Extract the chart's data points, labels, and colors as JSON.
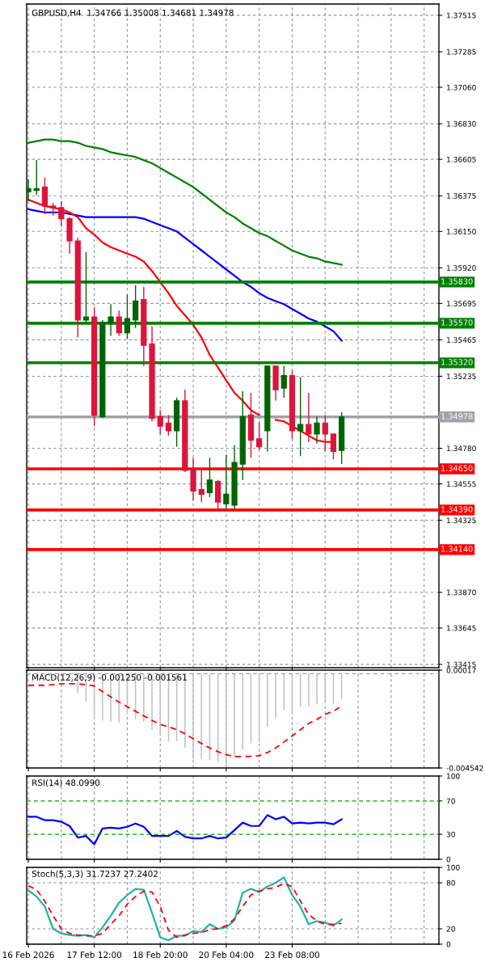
{
  "chart_data": [
    {
      "type": "candlestick",
      "title": "GBPUSD,H4  1.34766 1.35008 1.34681 1.34978",
      "categories": [
        null,
        null,
        null,
        null,
        null,
        null,
        null,
        null,
        null,
        null,
        null,
        null,
        null,
        null,
        null,
        null,
        null,
        null,
        null,
        null,
        null,
        null,
        null,
        null,
        null,
        null,
        null,
        null,
        null,
        null,
        null,
        null,
        null,
        null,
        null,
        null,
        null,
        null,
        null
      ],
      "ohlc": [
        [
          1.364,
          1.3648,
          1.3634,
          1.3642
        ],
        [
          1.3641,
          1.366,
          1.3638,
          1.3642
        ],
        [
          1.3643,
          1.3649,
          1.3626,
          1.3631
        ],
        [
          1.3631,
          1.3633,
          1.3625,
          1.363
        ],
        [
          1.363,
          1.3634,
          1.3618,
          1.3623
        ],
        [
          1.3623,
          1.3624,
          1.3601,
          1.3609
        ],
        [
          1.3609,
          1.3611,
          1.3548,
          1.3559
        ],
        [
          1.3559,
          1.3602,
          1.3558,
          1.3561
        ],
        [
          1.3561,
          1.3567,
          1.3492,
          1.3499
        ],
        [
          1.3498,
          1.3559,
          1.3497,
          1.3557
        ],
        [
          1.3557,
          1.3569,
          1.3549,
          1.3561
        ],
        [
          1.3561,
          1.3565,
          1.3549,
          1.3551
        ],
        [
          1.3551,
          1.3575,
          1.3547,
          1.356
        ],
        [
          1.3559,
          1.3581,
          1.3554,
          1.3571
        ],
        [
          1.3572,
          1.358,
          1.353,
          1.3543
        ],
        [
          1.3544,
          1.3555,
          1.3495,
          1.3497
        ],
        [
          1.3498,
          1.3502,
          1.3487,
          1.3492
        ],
        [
          1.3494,
          1.3499,
          1.3486,
          1.3489
        ],
        [
          1.3489,
          1.351,
          1.3479,
          1.3508
        ],
        [
          1.3508,
          1.3515,
          1.3463,
          1.3464
        ],
        [
          1.3465,
          1.3472,
          1.3445,
          1.3451
        ],
        [
          1.3452,
          1.3464,
          1.3444,
          1.3449
        ],
        [
          1.345,
          1.3472,
          1.3447,
          1.3458
        ],
        [
          1.3457,
          1.3458,
          1.344,
          1.3444
        ],
        [
          1.3443,
          1.3474,
          1.344,
          1.3449
        ],
        [
          1.3442,
          1.348,
          1.344,
          1.3469
        ],
        [
          1.3468,
          1.3514,
          1.3458,
          1.3498
        ],
        [
          1.3499,
          1.3513,
          1.3472,
          1.3483
        ],
        [
          1.3484,
          1.3495,
          1.3477,
          1.3479
        ],
        [
          1.3489,
          1.353,
          1.3476,
          1.353
        ],
        [
          1.353,
          1.353,
          1.3508,
          1.3515
        ],
        [
          1.3516,
          1.353,
          1.351,
          1.3524
        ],
        [
          1.3524,
          1.3527,
          1.3484,
          1.3489
        ],
        [
          1.3489,
          1.3523,
          1.3473,
          1.3493
        ],
        [
          1.3493,
          1.3513,
          1.3482,
          1.3487
        ],
        [
          1.3487,
          1.3498,
          1.3481,
          1.3494
        ],
        [
          1.3494,
          1.3499,
          1.3476,
          1.3487
        ],
        [
          1.3487,
          1.3487,
          1.3471,
          1.3476
        ],
        [
          1.34766,
          1.35008,
          1.34681,
          1.34978
        ]
      ],
      "colors": [
        "#006400",
        "#006400",
        "#dc143c",
        "#dc143c",
        "#dc143c",
        "#dc143c",
        "#dc143c",
        "#006400",
        "#dc143c",
        "#006400",
        "#006400",
        "#dc143c",
        "#006400",
        "#006400",
        "#dc143c",
        "#dc143c",
        "#dc143c",
        "#dc143c",
        "#006400",
        "#dc143c",
        "#dc143c",
        "#dc143c",
        "#006400",
        "#dc143c",
        "#006400",
        "#006400",
        "#006400",
        "#dc143c",
        "#dc143c",
        "#006400",
        "#dc143c",
        "#006400",
        "#dc143c",
        "#006400",
        "#dc143c",
        "#006400",
        "#dc143c",
        "#dc143c",
        "#006400"
      ],
      "series": [
        {
          "type": "line",
          "color": "#008000",
          "values": [
            1.3671,
            1.3672,
            1.3673,
            1.3673,
            1.3672,
            1.3672,
            1.3671,
            1.3669,
            1.3668,
            1.3667,
            1.3665,
            1.3664,
            1.3663,
            1.3662,
            1.366,
            1.3658,
            1.3655,
            1.3652,
            1.3649,
            1.3646,
            1.3643,
            1.3639,
            1.3635,
            1.3631,
            1.3627,
            1.3624,
            1.362,
            1.3617,
            1.3614,
            1.3612,
            1.3609,
            1.3606,
            1.3603,
            1.3601,
            1.3599,
            1.3598,
            1.3596,
            1.3595,
            1.3594
          ]
        },
        {
          "type": "line",
          "color": "#0000ff",
          "values": [
            1.3629,
            1.3628,
            1.3627,
            1.3627,
            1.3627,
            1.3626,
            1.3625,
            1.3624,
            1.3624,
            1.3624,
            1.3624,
            1.3624,
            1.3624,
            1.3624,
            1.3623,
            1.3621,
            1.3619,
            1.3617,
            1.3615,
            1.3611,
            1.3607,
            1.3603,
            1.3599,
            1.3595,
            1.3591,
            1.3587,
            1.3583,
            1.358,
            1.3576,
            1.3573,
            1.3571,
            1.3569,
            1.3566,
            1.3563,
            1.356,
            1.3558,
            1.3555,
            1.3552,
            1.3546
          ]
        },
        {
          "type": "line",
          "color": "#ff0000",
          "values": [
            1.3635,
            1.3633,
            1.3631,
            1.363,
            1.3629,
            1.3627,
            1.3624,
            1.3617,
            1.3613,
            1.3608,
            1.3605,
            1.3603,
            1.3601,
            1.3599,
            1.3596,
            1.359,
            1.3583,
            1.3576,
            1.3568,
            1.3562,
            1.3556,
            1.3548,
            1.3537,
            1.3529,
            1.3521,
            1.3513,
            1.3508,
            1.3502,
            1.3499,
            null,
            1.3496,
            1.3495,
            1.3492,
            1.3489,
            1.3486,
            1.3483,
            1.3482,
            1.3482,
            null
          ]
        }
      ],
      "ylim": [
        1.33394,
        1.37586
      ],
      "yticks": [
        1.37515,
        1.37285,
        {
          "value": 1.3706,
          "label": "1.37060"
        },
        {
          "value": 1.3683,
          "label": "1.36830"
        },
        1.36605,
        1.36375,
        {
          "value": 1.3615,
          "label": "1.36150"
        },
        {
          "value": 1.3592,
          "label": "1.35920"
        },
        1.35695,
        1.35465,
        1.35235,
        {
          "value": 1.3478,
          "label": "1.34780"
        },
        1.34555,
        1.34325,
        {
          "value": 1.3387,
          "label": "1.33870"
        },
        1.33645,
        1.33415
      ],
      "ref_lines": [
        {
          "axis": "y",
          "value": 1.3583,
          "label": "1.35830",
          "color": "#008000"
        },
        {
          "axis": "y",
          "value": 1.3557,
          "label": "1.35570",
          "color": "#008000"
        },
        {
          "axis": "y",
          "value": 1.3532,
          "label": "1.35320",
          "color": "#008000"
        },
        {
          "axis": "y",
          "value": 1.34978,
          "label": "1.34978",
          "color": "#a0a4a8"
        },
        {
          "axis": "y",
          "value": 1.3465,
          "label": "1.34650",
          "color": "#ff0000"
        },
        {
          "axis": "y",
          "value": 1.3439,
          "label": "1.34390",
          "color": "#ff0000"
        },
        {
          "axis": "y",
          "value": 1.3414,
          "label": "1.34140",
          "color": "#ff0000"
        }
      ],
      "grid": true,
      "tick_labels": "y"
    },
    {
      "type": "bar",
      "title": "MACD(12,26,9) -0.001250 -0.001561",
      "categories": [
        null,
        null,
        null,
        null,
        null,
        null,
        null,
        null,
        null,
        null,
        null,
        null,
        null,
        null,
        null,
        null,
        null,
        null,
        null,
        null,
        null,
        null,
        null,
        null,
        null,
        null,
        null,
        null,
        null,
        null,
        null,
        null,
        null,
        null,
        null,
        null,
        null,
        null,
        null
      ],
      "series": [
        {
          "type": "bar",
          "color": "#c0c0c0",
          "values": [
            null,
            null,
            null,
            null,
            null,
            null,
            -0.00093,
            -0.00134,
            -0.00218,
            -0.00226,
            -0.0023,
            -0.00236,
            -0.00196,
            -0.00218,
            -0.0023,
            -0.0027,
            -0.00292,
            -0.00326,
            -0.00326,
            -0.00358,
            -0.0041,
            -0.0041,
            -0.00417,
            -0.00427,
            -0.00454,
            -0.00405,
            -0.00365,
            -0.00336,
            -0.00329,
            -0.00255,
            -0.00211,
            -0.00177,
            -0.00196,
            -0.00159,
            -0.00156,
            -0.00148,
            -0.00142,
            -0.00145,
            -0.00125
          ]
        },
        {
          "type": "line",
          "color": "#ff0000",
          "line_style": "dashed",
          "values": [
            -0.00056,
            -0.00056,
            -0.00056,
            -0.00053,
            -0.00049,
            -0.00049,
            -0.00049,
            -0.00053,
            -0.00059,
            -0.00086,
            -0.00112,
            -0.00137,
            -0.00159,
            -0.00181,
            -0.00203,
            -0.00225,
            -0.00245,
            -0.00256,
            -0.0027,
            -0.00289,
            -0.00314,
            -0.00336,
            -0.00358,
            -0.00376,
            -0.0039,
            -0.00399,
            -0.00399,
            -0.00398,
            -0.00395,
            -0.0038,
            -0.00358,
            -0.00329,
            -0.003,
            -0.0027,
            -0.0024,
            -0.0022,
            -0.00196,
            -0.00181,
            -0.00156
          ]
        }
      ],
      "ylim": [
        -0.004542,
        0.00017
      ],
      "yticks": [
        0.00017,
        -0.004542
      ],
      "ref_lines": [
        {
          "axis": "y",
          "value": 0,
          "color": "#a0a4a8",
          "line_style": "dashed"
        }
      ],
      "grid": "x",
      "tick_labels": "y"
    },
    {
      "type": "line",
      "title": "RSI(14) 48.0990",
      "categories": [
        null,
        null,
        null,
        null,
        null,
        null,
        null,
        null,
        null,
        null,
        null,
        null,
        null,
        null,
        null,
        null,
        null,
        null,
        null,
        null,
        null,
        null,
        null,
        null,
        null,
        null,
        null,
        null,
        null,
        null,
        null,
        null,
        null,
        null,
        null,
        null,
        null,
        null,
        null
      ],
      "series": [
        {
          "color": "#0000ff",
          "values": [
            51,
            51,
            47,
            47,
            45,
            40,
            26,
            28,
            18,
            37,
            38,
            37,
            39,
            43,
            39,
            28,
            28,
            28,
            34,
            27,
            25,
            25,
            28,
            25,
            26,
            35,
            44,
            40,
            40,
            53,
            48,
            51,
            43,
            44,
            43,
            44,
            44,
            42,
            48
          ]
        }
      ],
      "ylim": [
        0,
        100
      ],
      "yticks": [
        100,
        70,
        30,
        0
      ],
      "ref_lines": [
        {
          "axis": "y",
          "value": 70,
          "color": "#00a000",
          "line_style": "dashed"
        },
        {
          "axis": "y",
          "value": 30,
          "color": "#00a000",
          "line_style": "dashed"
        }
      ],
      "grid": "x",
      "tick_labels": "y"
    },
    {
      "type": "line",
      "title": "Stoch(5,3,3) 31.7237 27.2402",
      "categories": [
        "16 Feb 2026",
        null,
        null,
        null,
        null,
        null,
        null,
        null,
        "17 Feb 12:00",
        null,
        null,
        null,
        null,
        null,
        null,
        null,
        "18 Feb 20:00",
        null,
        null,
        null,
        null,
        null,
        null,
        null,
        "20 Feb 04:00",
        null,
        null,
        null,
        null,
        null,
        null,
        null,
        "23 Feb 08:00",
        null,
        null,
        null,
        null,
        null,
        null
      ],
      "series": [
        {
          "color": "#20b2aa",
          "values": [
            70,
            62,
            49,
            20,
            14,
            12,
            11,
            12,
            9,
            22,
            37,
            54,
            64,
            72,
            71,
            41,
            9,
            5,
            11,
            11,
            17,
            16,
            26,
            20,
            22,
            31,
            67,
            72,
            68,
            75,
            80,
            87,
            64,
            49,
            26,
            30,
            28,
            24,
            32
          ]
        },
        {
          "color": "#ff0000",
          "line_style": "dashed",
          "values": [
            76,
            71,
            56,
            37,
            20,
            14,
            12,
            11,
            11,
            14,
            26,
            37,
            52,
            62,
            69,
            68,
            49,
            18,
            9,
            12,
            14,
            15,
            19,
            20,
            24,
            33,
            49,
            64,
            69,
            72,
            74,
            79,
            75,
            56,
            39,
            30,
            26,
            26,
            27
          ]
        }
      ],
      "ylim": [
        0,
        100
      ],
      "yticks": [
        100,
        80,
        20,
        0
      ],
      "grid": true
    }
  ]
}
